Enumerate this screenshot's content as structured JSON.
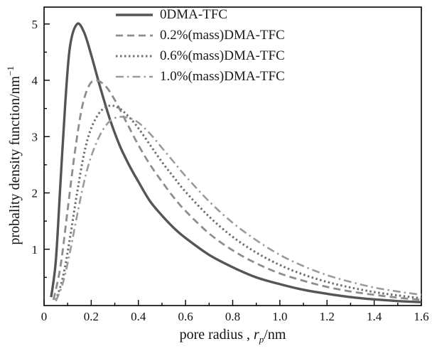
{
  "chart_data": {
    "type": "line",
    "title": "",
    "grid": false,
    "legend_position": "top-left-inside",
    "xlabel": {
      "prefix": "pore radius , ",
      "symbol": "r",
      "symbol_sub": "p",
      "suffix": "/nm"
    },
    "ylabel": {
      "text": "probality density function/nm",
      "sup": "−1"
    },
    "xlim": [
      0,
      1.6
    ],
    "ylim": [
      0,
      5.3
    ],
    "x_ticks": [
      {
        "v": 0,
        "label": "0"
      },
      {
        "v": 0.2,
        "label": "0.2"
      },
      {
        "v": 0.4,
        "label": "0.4"
      },
      {
        "v": 0.6,
        "label": "0.6"
      },
      {
        "v": 0.8,
        "label": "0.8"
      },
      {
        "v": 1.0,
        "label": "1.0"
      },
      {
        "v": 1.2,
        "label": "1.2"
      },
      {
        "v": 1.4,
        "label": "1.4"
      },
      {
        "v": 1.6,
        "label": "1.6"
      }
    ],
    "y_ticks": [
      {
        "v": 1,
        "label": "1"
      },
      {
        "v": 2,
        "label": "2"
      },
      {
        "v": 3,
        "label": "3"
      },
      {
        "v": 4,
        "label": "4"
      },
      {
        "v": 5,
        "label": "5"
      }
    ],
    "x_minor_step": 0.1,
    "y_minor_step": 0.5,
    "series": [
      {
        "name": "0DMA-TFC",
        "line_style": "solid",
        "color": "#555555",
        "width": 3.4,
        "dash": [],
        "x": [
          0.03,
          0.05,
          0.07,
          0.09,
          0.11,
          0.14,
          0.17,
          0.2,
          0.24,
          0.28,
          0.32,
          0.36,
          0.4,
          0.45,
          0.5,
          0.55,
          0.6,
          0.7,
          0.8,
          0.9,
          1.0,
          1.1,
          1.2,
          1.3,
          1.4,
          1.5,
          1.6
        ],
        "y": [
          0.15,
          0.8,
          2.2,
          3.6,
          4.6,
          5.0,
          4.85,
          4.45,
          3.85,
          3.3,
          2.85,
          2.5,
          2.2,
          1.85,
          1.6,
          1.38,
          1.2,
          0.9,
          0.68,
          0.5,
          0.38,
          0.28,
          0.21,
          0.15,
          0.11,
          0.08,
          0.06
        ]
      },
      {
        "name": "0.2%(mass)DMA-TFC",
        "line_style": "dashed",
        "color": "#8d8d8d",
        "width": 2.8,
        "dash": [
          10,
          6
        ],
        "x": [
          0.04,
          0.07,
          0.1,
          0.13,
          0.16,
          0.19,
          0.22,
          0.26,
          0.3,
          0.35,
          0.4,
          0.45,
          0.5,
          0.55,
          0.6,
          0.7,
          0.8,
          0.9,
          1.0,
          1.1,
          1.2,
          1.3,
          1.4,
          1.5,
          1.6
        ],
        "y": [
          0.1,
          0.7,
          1.7,
          2.7,
          3.5,
          3.9,
          4.0,
          3.9,
          3.65,
          3.25,
          2.85,
          2.5,
          2.2,
          1.92,
          1.68,
          1.28,
          0.98,
          0.75,
          0.57,
          0.44,
          0.33,
          0.25,
          0.19,
          0.14,
          0.1
        ]
      },
      {
        "name": "0.6%(mass)DMA-TFC",
        "line_style": "dotted",
        "color": "#6f6f6f",
        "width": 3.0,
        "dash": [
          2.5,
          3.5
        ],
        "x": [
          0.05,
          0.08,
          0.11,
          0.14,
          0.17,
          0.2,
          0.24,
          0.28,
          0.32,
          0.36,
          0.4,
          0.45,
          0.5,
          0.55,
          0.6,
          0.7,
          0.8,
          0.9,
          1.0,
          1.1,
          1.2,
          1.3,
          1.4,
          1.5,
          1.6
        ],
        "y": [
          0.1,
          0.5,
          1.2,
          2.0,
          2.7,
          3.15,
          3.45,
          3.55,
          3.5,
          3.35,
          3.15,
          2.85,
          2.55,
          2.28,
          2.02,
          1.58,
          1.22,
          0.94,
          0.72,
          0.55,
          0.42,
          0.32,
          0.24,
          0.18,
          0.13
        ]
      },
      {
        "name": "1.0%(mass)DMA-TFC",
        "line_style": "dash-dot",
        "color": "#9b9b9b",
        "width": 2.6,
        "dash": [
          11,
          5,
          2.5,
          5
        ],
        "x": [
          0.05,
          0.08,
          0.11,
          0.14,
          0.17,
          0.2,
          0.24,
          0.28,
          0.32,
          0.36,
          0.4,
          0.45,
          0.5,
          0.55,
          0.6,
          0.7,
          0.8,
          0.9,
          1.0,
          1.1,
          1.2,
          1.3,
          1.4,
          1.5,
          1.6
        ],
        "y": [
          0.08,
          0.4,
          0.95,
          1.6,
          2.2,
          2.65,
          3.05,
          3.28,
          3.35,
          3.33,
          3.25,
          3.05,
          2.8,
          2.55,
          2.3,
          1.85,
          1.47,
          1.16,
          0.9,
          0.7,
          0.54,
          0.42,
          0.32,
          0.25,
          0.19
        ]
      }
    ],
    "axis_color": "#000000"
  }
}
